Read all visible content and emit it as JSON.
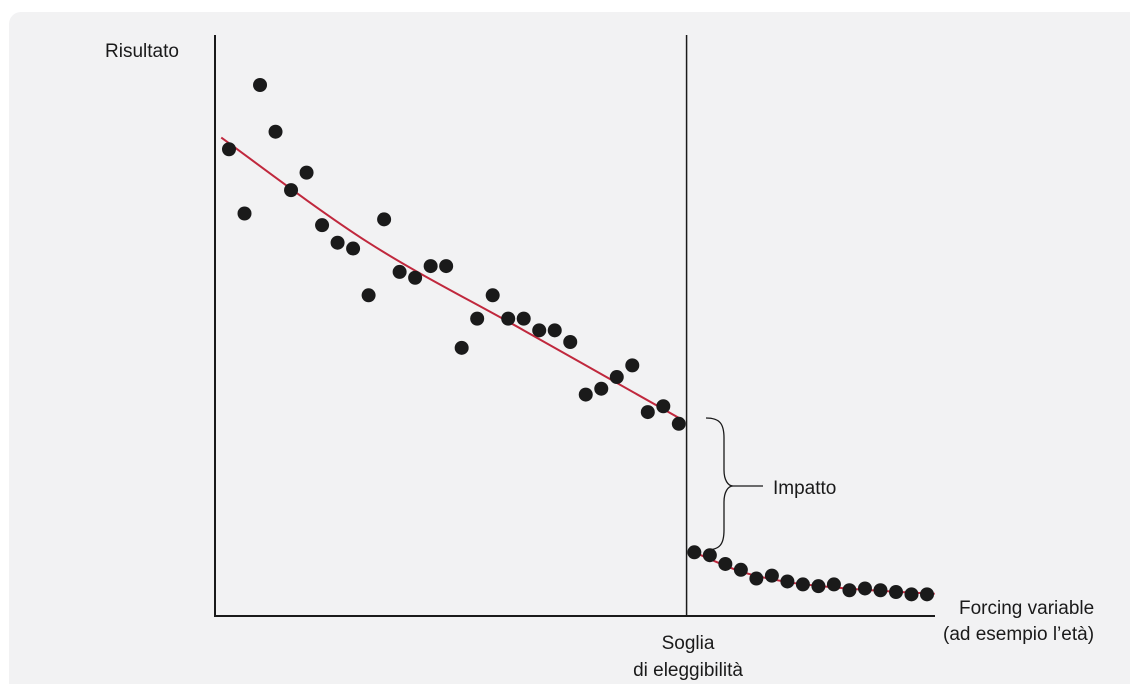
{
  "chart_data": {
    "type": "scatter",
    "title": "",
    "ylabel": "Risultato",
    "xlabel_lines": [
      "Forcing variable",
      "(ad esempio l’età)"
    ],
    "threshold_label_lines": [
      "Soglia",
      "di eleggibilità"
    ],
    "annotation": "Impatto",
    "threshold_x": 30.5,
    "xlim": [
      0,
      48
    ],
    "ylim": [
      0,
      100
    ],
    "grid": false,
    "colors": {
      "points": "#1a1a1a",
      "fit": "#c0283d",
      "axes": "#1a1a1a"
    },
    "series": [
      {
        "segment": "left",
        "x": [
          1,
          2,
          3,
          4,
          5,
          6,
          7,
          8,
          9,
          10,
          11,
          12,
          13,
          14,
          15,
          16,
          17,
          18,
          19,
          20,
          21,
          22,
          23,
          24,
          25,
          26,
          27,
          28,
          29,
          30
        ],
        "y": [
          77,
          66,
          88,
          80,
          70,
          73,
          64,
          61,
          60,
          52,
          65,
          56,
          55,
          57,
          57,
          43,
          48,
          52,
          48,
          48,
          46,
          46,
          44,
          35,
          36,
          38,
          40,
          32,
          33,
          30
        ]
      },
      {
        "segment": "right",
        "x": [
          31,
          32,
          33,
          34,
          35,
          36,
          37,
          38,
          39,
          40,
          41,
          42,
          43,
          44,
          45,
          46
        ],
        "y": [
          8,
          7.5,
          6,
          5,
          3.5,
          4,
          3,
          2.5,
          2.2,
          2.5,
          1.5,
          1.8,
          1.5,
          1.2,
          0.8,
          0.8
        ]
      }
    ],
    "fit_lines": [
      {
        "segment": "left",
        "x": [
          0.5,
          10,
          20,
          30
        ],
        "y": [
          79,
          61,
          46,
          31
        ]
      },
      {
        "segment": "right",
        "x": [
          31,
          34,
          37,
          40,
          43,
          46.5
        ],
        "y": [
          8,
          4.7,
          2.9,
          2,
          1.4,
          0.9
        ]
      }
    ]
  }
}
